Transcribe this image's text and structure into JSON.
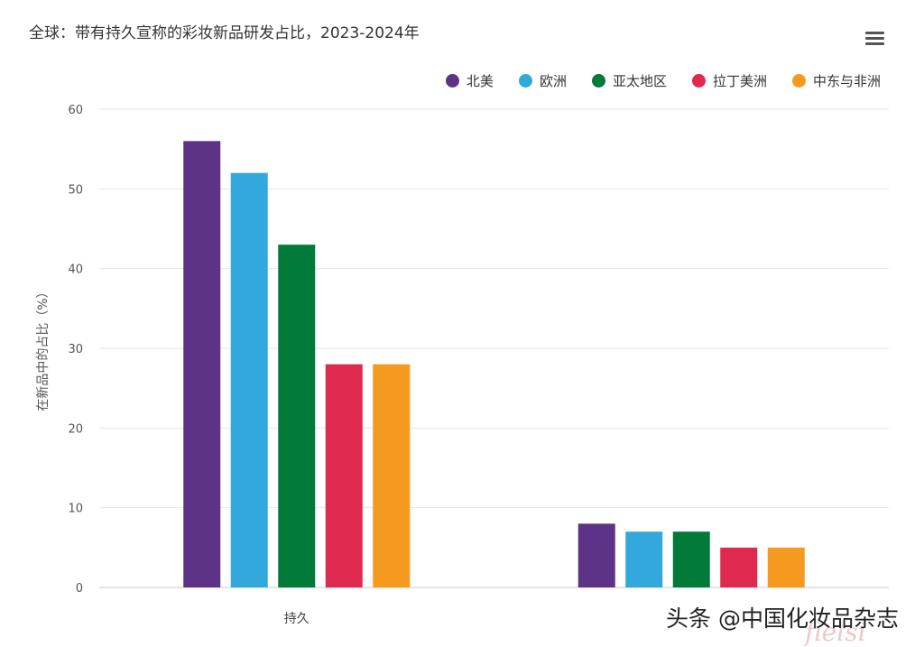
{
  "chart_data": {
    "type": "bar",
    "title": "全球：带有持久宣称的彩妆新品研发占比，2023-2024年",
    "ylabel": "在新品中的占比（%）",
    "xlabel": "",
    "ylim": [
      0,
      60
    ],
    "yticks": [
      "0",
      "10",
      "20",
      "30",
      "40",
      "50",
      "60"
    ],
    "grid": true,
    "legend_position": "top-right",
    "categories": [
      "持久",
      ""
    ],
    "series": [
      {
        "name": "北美",
        "color": "#5c3387",
        "values": [
          56,
          8
        ]
      },
      {
        "name": "欧洲",
        "color": "#33a8dc",
        "values": [
          52,
          7
        ]
      },
      {
        "name": "亚太地区",
        "color": "#027a3a",
        "values": [
          43,
          7
        ]
      },
      {
        "name": "拉丁美洲",
        "color": "#e0294f",
        "values": [
          28,
          5
        ]
      },
      {
        "name": "中东与非洲",
        "color": "#f59a1e",
        "values": [
          28,
          5
        ]
      }
    ]
  },
  "menu_icon": "hamburger-menu-icon",
  "watermark": "头条 @中国化妆品杂志",
  "watermark_ghost": "fielsi"
}
